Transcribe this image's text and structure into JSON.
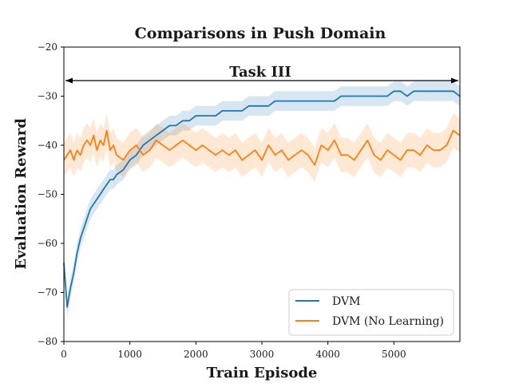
{
  "chart_data": {
    "type": "line",
    "title": "Comparisons in Push Domain",
    "xlabel": "Train Episode",
    "ylabel": "Evaluation Reward",
    "xlim": [
      0,
      6000
    ],
    "ylim": [
      -80,
      -20
    ],
    "xticks": [
      "0",
      "1000",
      "2000",
      "3000",
      "4000",
      "5000"
    ],
    "yticks": [
      "−20",
      "−30",
      "−40",
      "−50",
      "−60",
      "−70",
      "−80"
    ],
    "xtick_values": [
      0,
      1000,
      2000,
      3000,
      4000,
      5000
    ],
    "ytick_values": [
      -20,
      -30,
      -40,
      -50,
      -60,
      -70,
      -80
    ],
    "annotation": {
      "text": "Task III",
      "x_range": [
        0,
        6000
      ],
      "y": -27
    },
    "legend_position": "lower right",
    "grid": false,
    "series": [
      {
        "name": "DVM",
        "color": "#1f77b4",
        "x": [
          0,
          50,
          100,
          150,
          200,
          250,
          300,
          350,
          400,
          450,
          500,
          550,
          600,
          650,
          700,
          750,
          800,
          900,
          1000,
          1100,
          1200,
          1300,
          1400,
          1500,
          1600,
          1700,
          1800,
          1900,
          2000,
          2100,
          2200,
          2300,
          2400,
          2500,
          2600,
          2700,
          2800,
          2900,
          3000,
          3100,
          3200,
          3300,
          3400,
          3500,
          3600,
          3700,
          3800,
          3900,
          4000,
          4100,
          4200,
          4300,
          4400,
          4500,
          4600,
          4700,
          4800,
          4900,
          5000,
          5100,
          5200,
          5300,
          5400,
          5500,
          5600,
          5700,
          5800,
          5900,
          6000
        ],
        "values": [
          -64,
          -73,
          -69,
          -66,
          -62,
          -59,
          -57,
          -55,
          -53,
          -52,
          -51,
          -50,
          -49,
          -48,
          -47,
          -47,
          -46,
          -45,
          -43,
          -42,
          -40,
          -39,
          -38,
          -37,
          -36,
          -36,
          -35,
          -35,
          -34,
          -34,
          -34,
          -34,
          -33,
          -33,
          -33,
          -33,
          -32,
          -32,
          -32,
          -32,
          -31,
          -31,
          -31,
          -31,
          -31,
          -31,
          -31,
          -31,
          -31,
          -31,
          -30,
          -30,
          -30,
          -30,
          -30,
          -30,
          -30,
          -30,
          -29,
          -29,
          -30,
          -29,
          -29,
          -29,
          -29,
          -29,
          -29,
          -29,
          -30
        ],
        "band": 2.0
      },
      {
        "name": "DVM (No Learning)",
        "color": "#ff7f0e",
        "x": [
          0,
          50,
          100,
          150,
          200,
          250,
          300,
          350,
          400,
          450,
          500,
          550,
          600,
          650,
          700,
          750,
          800,
          900,
          1000,
          1100,
          1200,
          1300,
          1400,
          1500,
          1600,
          1700,
          1800,
          1900,
          2000,
          2100,
          2200,
          2300,
          2400,
          2500,
          2600,
          2700,
          2800,
          2900,
          3000,
          3100,
          3200,
          3300,
          3400,
          3500,
          3600,
          3700,
          3800,
          3900,
          4000,
          4100,
          4200,
          4300,
          4400,
          4500,
          4600,
          4700,
          4800,
          4900,
          5000,
          5100,
          5200,
          5300,
          5400,
          5500,
          5600,
          5700,
          5800,
          5900,
          6000
        ],
        "values": [
          -43,
          -42,
          -41,
          -43,
          -41,
          -42,
          -40,
          -39,
          -40,
          -38,
          -41,
          -39,
          -40,
          -37,
          -41,
          -40,
          -42,
          -43,
          -41,
          -40,
          -42,
          -41,
          -39,
          -40,
          -41,
          -40,
          -39,
          -40,
          -41,
          -40,
          -41,
          -42,
          -41,
          -42,
          -41,
          -43,
          -42,
          -41,
          -43,
          -40,
          -42,
          -41,
          -43,
          -42,
          -41,
          -42,
          -44,
          -40,
          -41,
          -39,
          -42,
          -42,
          -43,
          -41,
          -39,
          -42,
          -43,
          -41,
          -42,
          -43,
          -41,
          -41,
          -42,
          -40,
          -41,
          -41,
          -40,
          -37,
          -38
        ],
        "band": 3.5
      }
    ]
  }
}
